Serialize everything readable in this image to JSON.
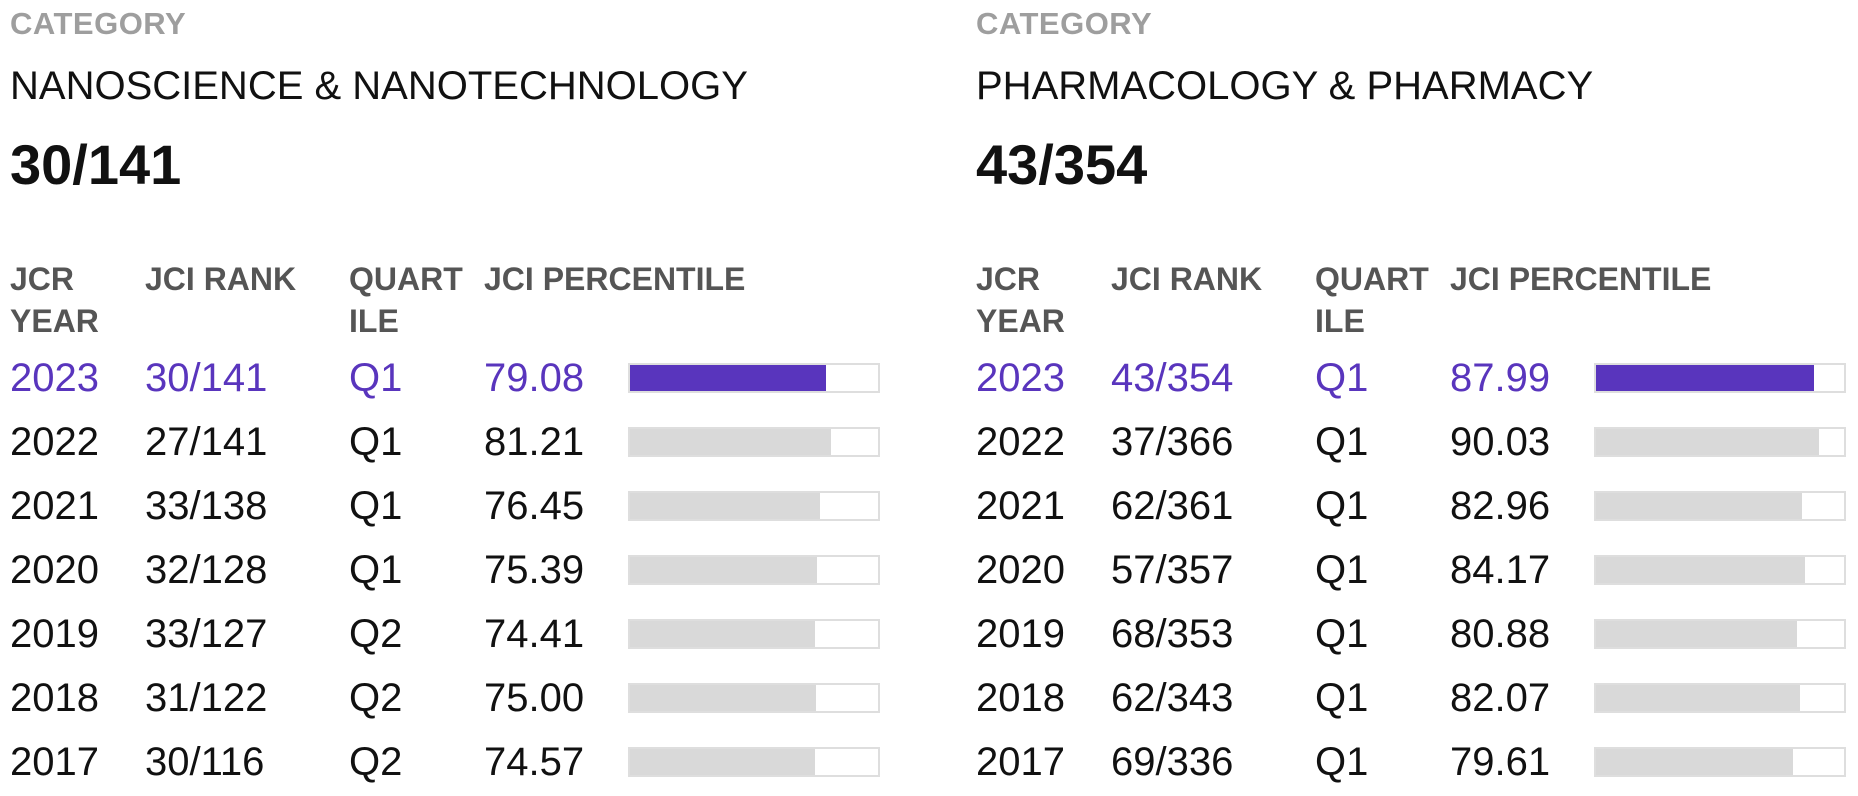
{
  "panels": [
    {
      "category_label": "CATEGORY",
      "category_name": "NANOSCIENCE & NANOTECHNOLOGY",
      "current_rank": "30/141",
      "columns": {
        "year": [
          "JCR",
          "YEAR"
        ],
        "rank": [
          "JCI RANK"
        ],
        "quartile": [
          "QUART",
          "ILE"
        ],
        "percentile": [
          "JCI PERCENTILE"
        ]
      },
      "rows": [
        {
          "year": "2023",
          "rank": "30/141",
          "quartile": "Q1",
          "percentile": "79.08",
          "percentile_value": 79.08,
          "current": true
        },
        {
          "year": "2022",
          "rank": "27/141",
          "quartile": "Q1",
          "percentile": "81.21",
          "percentile_value": 81.21,
          "current": false
        },
        {
          "year": "2021",
          "rank": "33/138",
          "quartile": "Q1",
          "percentile": "76.45",
          "percentile_value": 76.45,
          "current": false
        },
        {
          "year": "2020",
          "rank": "32/128",
          "quartile": "Q1",
          "percentile": "75.39",
          "percentile_value": 75.39,
          "current": false
        },
        {
          "year": "2019",
          "rank": "33/127",
          "quartile": "Q2",
          "percentile": "74.41",
          "percentile_value": 74.41,
          "current": false
        },
        {
          "year": "2018",
          "rank": "31/122",
          "quartile": "Q2",
          "percentile": "75.00",
          "percentile_value": 75.0,
          "current": false
        },
        {
          "year": "2017",
          "rank": "30/116",
          "quartile": "Q2",
          "percentile": "74.57",
          "percentile_value": 74.57,
          "current": false
        }
      ]
    },
    {
      "category_label": "CATEGORY",
      "category_name": "PHARMACOLOGY & PHARMACY",
      "current_rank": "43/354",
      "columns": {
        "year": [
          "JCR",
          "YEAR"
        ],
        "rank": [
          "JCI RANK"
        ],
        "quartile": [
          "QUART",
          "ILE"
        ],
        "percentile": [
          "JCI PERCENTILE"
        ]
      },
      "rows": [
        {
          "year": "2023",
          "rank": "43/354",
          "quartile": "Q1",
          "percentile": "87.99",
          "percentile_value": 87.99,
          "current": true
        },
        {
          "year": "2022",
          "rank": "37/366",
          "quartile": "Q1",
          "percentile": "90.03",
          "percentile_value": 90.03,
          "current": false
        },
        {
          "year": "2021",
          "rank": "62/361",
          "quartile": "Q1",
          "percentile": "82.96",
          "percentile_value": 82.96,
          "current": false
        },
        {
          "year": "2020",
          "rank": "57/357",
          "quartile": "Q1",
          "percentile": "84.17",
          "percentile_value": 84.17,
          "current": false
        },
        {
          "year": "2019",
          "rank": "68/353",
          "quartile": "Q1",
          "percentile": "80.88",
          "percentile_value": 80.88,
          "current": false
        },
        {
          "year": "2018",
          "rank": "62/343",
          "quartile": "Q1",
          "percentile": "82.07",
          "percentile_value": 82.07,
          "current": false
        },
        {
          "year": "2017",
          "rank": "69/336",
          "quartile": "Q1",
          "percentile": "79.61",
          "percentile_value": 79.61,
          "current": false
        }
      ]
    }
  ],
  "colors": {
    "accent": "#5935bd",
    "bar_inactive": "#d9d9d9",
    "bar_border": "#dedede",
    "label_gray": "#9e9e9e",
    "header_gray": "#555555",
    "text": "#111111"
  }
}
